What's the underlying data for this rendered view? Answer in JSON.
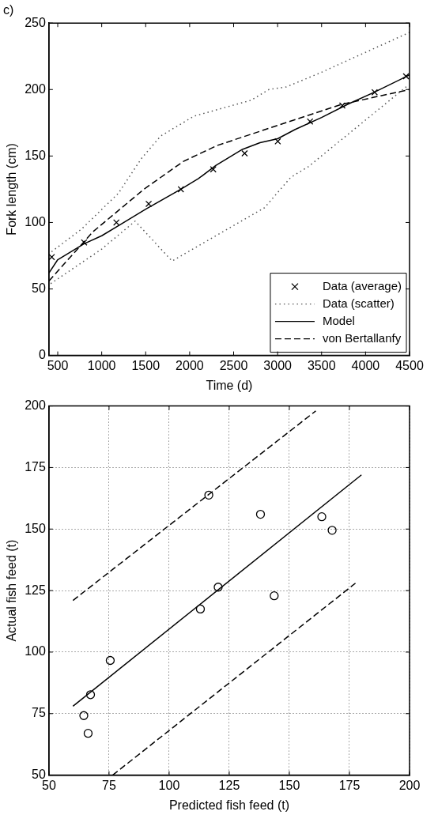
{
  "chart_data": [
    {
      "type": "line",
      "title": "c)",
      "xlabel": "Time (d)",
      "ylabel": "Fork length (cm)",
      "xlim": [
        400,
        4500
      ],
      "xticks": [
        500,
        1000,
        1500,
        2000,
        2500,
        3000,
        3500,
        4000,
        4500
      ],
      "ylim": [
        0,
        250
      ],
      "yticks": [
        0,
        50,
        100,
        150,
        200,
        250
      ],
      "grid": false,
      "legend": "bottom right",
      "series": [
        {
          "name": "Data (average)",
          "type": "scatter",
          "marker": "cross",
          "color": "#000000",
          "x": [
            432,
            800,
            1167,
            1534,
            1900,
            2268,
            2625,
            3002,
            3369,
            3736,
            4103,
            4460
          ],
          "values": [
            74,
            85,
            100,
            114,
            125,
            140,
            152,
            161,
            176,
            188,
            198,
            210
          ]
        },
        {
          "name": "Data (scatter)",
          "line_style": "dotted",
          "color": "#555555",
          "x": [
            430,
            770,
            1190,
            1450,
            1670,
            2050,
            2700,
            2900,
            3100,
            3500,
            4500
          ],
          "values": [
            78,
            95,
            122,
            148,
            165,
            180,
            192,
            200,
            202,
            213,
            243
          ]
        },
        {
          "line_style": "dotted",
          "color": "#555555",
          "x": [
            420,
            1000,
            1380,
            1800,
            2850,
            3150,
            3350,
            4480
          ],
          "values": [
            54,
            80,
            101,
            71,
            111,
            134,
            142,
            203
          ]
        },
        {
          "name": "Model",
          "line_style": "solid",
          "color": "#000000",
          "x": [
            400,
            500,
            700,
            800,
            1000,
            1200,
            1500,
            1900,
            2100,
            2300,
            2600,
            2800,
            3000,
            3200,
            3500,
            3800,
            4100,
            4500
          ],
          "values": [
            62,
            72,
            80,
            84,
            90,
            98,
            110,
            125,
            133,
            143,
            155,
            160,
            163,
            170,
            179,
            189,
            198,
            211
          ]
        },
        {
          "name": "von Bertallanfy",
          "line_style": "dashed",
          "color": "#000000",
          "x": [
            400,
            900,
            1480,
            1930,
            2316,
            3000,
            3736,
            4500
          ],
          "values": [
            56,
            93,
            125,
            146,
            158,
            173,
            189,
            200
          ]
        }
      ]
    },
    {
      "type": "scatter",
      "xlabel": "Predicted fish feed (t)",
      "ylabel": "Actual fish feed (t)",
      "xlim": [
        50,
        200
      ],
      "xticks": [
        50,
        75,
        100,
        125,
        150,
        175,
        200
      ],
      "ylim": [
        50,
        200
      ],
      "yticks": [
        50,
        75,
        100,
        125,
        150,
        175,
        200
      ],
      "grid": true,
      "legend": false,
      "series": [
        {
          "marker": "circle",
          "color": "#000000",
          "x": [
            116.5,
            138,
            163.5,
            167.8,
            120.4,
            143.7,
            113,
            75.5,
            67.3,
            64.5,
            66.3
          ],
          "values": [
            163.8,
            156,
            155,
            149.5,
            126.4,
            122.9,
            117.5,
            96.6,
            82.7,
            74.2,
            67
          ]
        },
        {
          "type": "line",
          "line_style": "solid",
          "color": "#000000",
          "x": [
            60,
            180
          ],
          "values": [
            78,
            172
          ]
        },
        {
          "type": "line",
          "line_style": "dashed",
          "color": "#000000",
          "x": [
            60,
            161
          ],
          "values": [
            121,
            198
          ]
        },
        {
          "type": "line",
          "line_style": "dashed",
          "color": "#000000",
          "x": [
            76.5,
            177.5
          ],
          "values": [
            50,
            128
          ]
        }
      ]
    }
  ]
}
